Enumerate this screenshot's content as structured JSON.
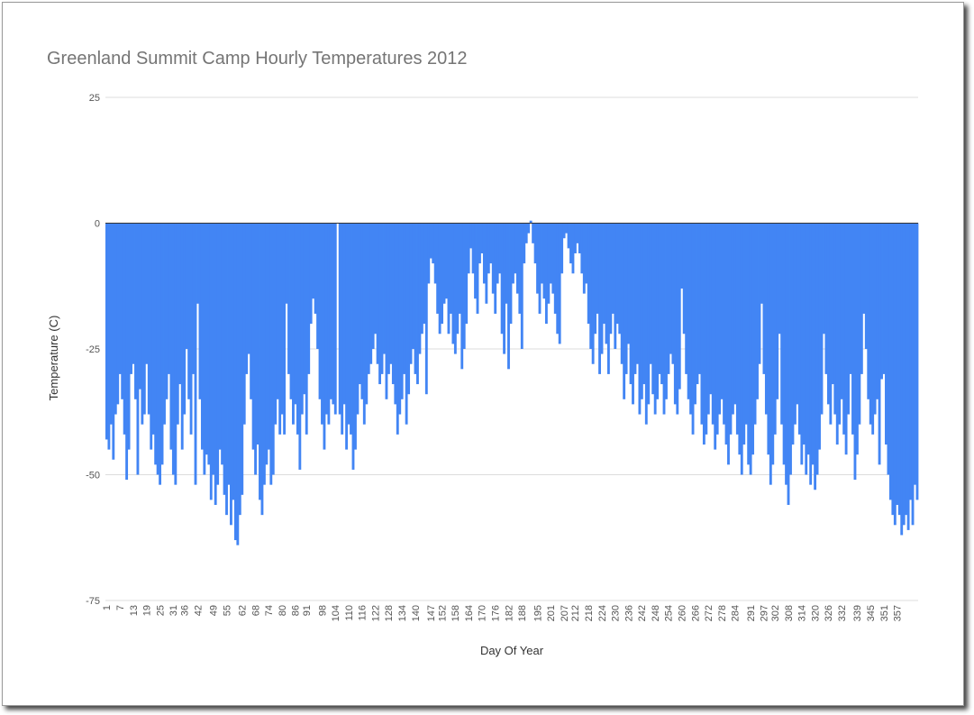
{
  "chart_data": {
    "type": "bar",
    "title": "Greenland Summit Camp Hourly Temperatures 2012",
    "x_label": "Day Of Year",
    "y_label": "Temperature (C)",
    "color": "#4285f4",
    "grid": true,
    "ylim": [
      -75,
      25
    ],
    "yticks": [
      -75,
      -50,
      -25,
      0,
      25
    ],
    "categories": [
      1,
      null,
      null,
      null,
      null,
      null,
      7,
      null,
      null,
      null,
      null,
      null,
      13,
      null,
      null,
      null,
      null,
      null,
      19,
      null,
      null,
      null,
      null,
      null,
      25,
      null,
      null,
      null,
      null,
      null,
      31,
      null,
      null,
      null,
      null,
      36,
      null,
      null,
      null,
      null,
      null,
      42,
      null,
      null,
      null,
      null,
      null,
      null,
      49,
      null,
      null,
      null,
      null,
      null,
      55,
      null,
      null,
      null,
      null,
      null,
      null,
      62,
      null,
      null,
      null,
      null,
      null,
      68,
      null,
      null,
      null,
      null,
      null,
      74,
      null,
      null,
      null,
      null,
      null,
      80,
      null,
      null,
      null,
      null,
      null,
      86,
      null,
      null,
      null,
      null,
      91,
      null,
      null,
      null,
      null,
      null,
      null,
      98,
      null,
      null,
      null,
      null,
      null,
      104,
      null,
      null,
      null,
      null,
      null,
      110,
      null,
      null,
      null,
      null,
      null,
      116,
      null,
      null,
      null,
      null,
      null,
      122,
      null,
      null,
      null,
      null,
      null,
      128,
      null,
      null,
      null,
      null,
      null,
      134,
      null,
      null,
      null,
      null,
      null,
      140,
      null,
      null,
      null,
      null,
      null,
      null,
      147,
      null,
      null,
      null,
      null,
      152,
      null,
      null,
      null,
      null,
      null,
      158,
      null,
      null,
      null,
      null,
      null,
      164,
      null,
      null,
      null,
      null,
      null,
      170,
      null,
      null,
      null,
      null,
      null,
      176,
      null,
      null,
      null,
      null,
      null,
      182,
      null,
      null,
      null,
      null,
      null,
      188,
      null,
      null,
      null,
      null,
      null,
      null,
      195,
      null,
      null,
      null,
      null,
      null,
      201,
      null,
      null,
      null,
      null,
      null,
      207,
      null,
      null,
      null,
      null,
      212,
      null,
      null,
      null,
      null,
      null,
      218,
      null,
      null,
      null,
      null,
      null,
      224,
      null,
      null,
      null,
      null,
      null,
      230,
      null,
      null,
      null,
      null,
      null,
      236,
      null,
      null,
      null,
      null,
      null,
      242,
      null,
      null,
      null,
      null,
      null,
      248,
      null,
      null,
      null,
      null,
      null,
      254,
      null,
      null,
      null,
      null,
      null,
      260,
      null,
      null,
      null,
      null,
      null,
      266,
      null,
      null,
      null,
      null,
      null,
      272,
      null,
      null,
      null,
      null,
      null,
      278,
      null,
      null,
      null,
      null,
      null,
      284,
      null,
      null,
      null,
      null,
      null,
      null,
      291,
      null,
      null,
      null,
      null,
      null,
      297,
      null,
      null,
      null,
      null,
      302,
      null,
      null,
      null,
      null,
      null,
      308,
      null,
      null,
      null,
      null,
      null,
      314,
      null,
      null,
      null,
      null,
      null,
      320,
      null,
      null,
      null,
      null,
      null,
      326,
      null,
      null,
      null,
      null,
      null,
      332,
      null,
      null,
      null,
      null,
      null,
      null,
      339,
      null,
      null,
      null,
      null,
      null,
      345,
      null,
      null,
      null,
      null,
      null,
      351,
      null,
      null,
      null,
      null,
      null,
      357,
      null,
      null,
      null,
      null,
      null,
      null,
      null,
      null,
      null
    ],
    "values": [
      -43,
      -45,
      -40,
      -47,
      -38,
      -36,
      -30,
      -35,
      -42,
      -51,
      -45,
      -30,
      -28,
      -35,
      -50,
      -33,
      -40,
      -38,
      -28,
      -38,
      -45,
      -42,
      -48,
      -50,
      -52,
      -48,
      -40,
      -35,
      -30,
      -45,
      -50,
      -52,
      -40,
      -32,
      -45,
      -38,
      -25,
      -35,
      -42,
      -30,
      -52,
      -16,
      -35,
      -45,
      -50,
      -46,
      -48,
      -55,
      -50,
      -56,
      -52,
      -45,
      -48,
      -54,
      -58,
      -52,
      -60,
      -55,
      -63,
      -64,
      -58,
      -54,
      -40,
      -30,
      -26,
      -35,
      -45,
      -50,
      -44,
      -55,
      -58,
      -52,
      -48,
      -45,
      -52,
      -50,
      -40,
      -35,
      -42,
      -38,
      -42,
      -16,
      -30,
      -35,
      -40,
      -36,
      -42,
      -49,
      -38,
      -34,
      -42,
      -30,
      -20,
      -15,
      -18,
      -25,
      -35,
      -40,
      -45,
      -38,
      -40,
      -35,
      -36,
      -38,
      null,
      -38,
      -42,
      -36,
      -45,
      -40,
      -42,
      -49,
      -45,
      -38,
      -32,
      -35,
      -40,
      -36,
      -30,
      -28,
      -25,
      -22,
      -28,
      -32,
      -30,
      -26,
      -35,
      -30,
      -28,
      -32,
      -36,
      -42,
      -38,
      -35,
      -30,
      -40,
      -34,
      -28,
      -25,
      -30,
      -32,
      -26,
      -22,
      -20,
      -34,
      -12,
      -7,
      -8,
      -12,
      -18,
      -22,
      -20,
      -16,
      -15,
      -22,
      -18,
      -24,
      -26,
      -22,
      -18,
      -29,
      -25,
      -20,
      -10,
      -5,
      -10,
      -15,
      -18,
      -8,
      -6,
      -12,
      -16,
      -10,
      -8,
      -14,
      -18,
      -12,
      -10,
      -22,
      -26,
      -16,
      -29,
      -20,
      -12,
      -10,
      -14,
      -18,
      -25,
      -8,
      -4,
      -2,
      0.5,
      -4,
      -8,
      -14,
      -18,
      -12,
      -15,
      -20,
      -16,
      -12,
      -14,
      -18,
      -22,
      -24,
      -10,
      -3,
      -2,
      -5,
      -8,
      -10,
      -6,
      -4,
      -6,
      -10,
      -14,
      -12,
      -20,
      -25,
      -28,
      -22,
      -18,
      -30,
      -26,
      -20,
      -24,
      -30,
      -22,
      -18,
      -25,
      -20,
      -22,
      -28,
      -35,
      -30,
      -24,
      -32,
      -36,
      -30,
      -28,
      -38,
      -35,
      -32,
      -40,
      -36,
      -28,
      -34,
      -38,
      -35,
      -30,
      -32,
      -38,
      -35,
      -30,
      -26,
      -28,
      -36,
      -38,
      -33,
      -13,
      -22,
      -30,
      -35,
      -38,
      -42,
      -36,
      -32,
      -30,
      -40,
      -44,
      -42,
      -38,
      -34,
      -40,
      -45,
      -42,
      -38,
      -35,
      -40,
      -44,
      -48,
      -42,
      -38,
      -36,
      -42,
      -46,
      -50,
      -44,
      -40,
      -48,
      -50,
      -46,
      -40,
      -35,
      -28,
      -16,
      -30,
      -38,
      -46,
      -52,
      -48,
      -42,
      -35,
      -22,
      -40,
      -48,
      -52,
      -56,
      -50,
      -44,
      -40,
      -36,
      -42,
      -48,
      -44,
      -50,
      -46,
      -52,
      -48,
      -53,
      -50,
      -45,
      -38,
      -22,
      -30,
      -36,
      -40,
      -32,
      -38,
      -44,
      -40,
      -35,
      -42,
      -46,
      -38,
      -30,
      -42,
      -51,
      -46,
      -40,
      -30,
      -18,
      -25,
      -35,
      -40,
      -42,
      -38,
      -35,
      -48,
      -31,
      -30,
      -44,
      -50,
      -55,
      -58,
      -60,
      -56,
      -58,
      -62,
      -60,
      -58,
      -61,
      -55,
      -60,
      -52,
      -55
    ]
  }
}
